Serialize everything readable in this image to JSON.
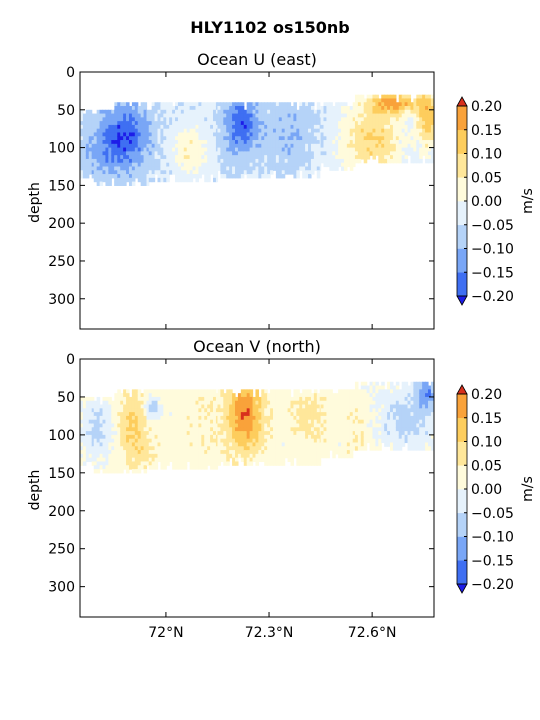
{
  "suptitle": "HLY1102 os150nb",
  "palette": {
    "levels": [
      -0.2,
      -0.15,
      -0.1,
      -0.05,
      0.0,
      0.05,
      0.1,
      0.15,
      0.2
    ],
    "colors": [
      "#1d1de8",
      "#3f6ff2",
      "#79a6f6",
      "#b5d3f8",
      "#e6f2fc",
      "#fffbdc",
      "#ffe79a",
      "#fdcd5d",
      "#f9a23a",
      "#ee6c26",
      "#d8301d"
    ]
  },
  "chart_data": [
    {
      "type": "heatmap",
      "name": "u",
      "title": "Ocean U (east)",
      "ylabel": "depth",
      "ylim": [
        340,
        0
      ],
      "yticks": [
        0,
        50,
        100,
        150,
        200,
        250,
        300
      ],
      "xlim": [
        71.75,
        72.78
      ],
      "xticks": [
        72.0,
        72.3,
        72.6
      ],
      "xticklabels": [],
      "colorbar": {
        "label": "m/s",
        "ticks": [
          0.2,
          0.15,
          0.1,
          0.05,
          0.0,
          -0.05,
          -0.1,
          -0.15,
          -0.2
        ],
        "ticklabels": [
          "0.20",
          "0.15",
          "0.10",
          "0.05",
          "0.00",
          "−0.05",
          "−0.10",
          "−0.15",
          "−0.20"
        ]
      },
      "depth_coverage": [
        {
          "x0": 71.75,
          "x1": 71.79,
          "d0": 50,
          "d1": 140
        },
        {
          "x0": 71.79,
          "x1": 71.85,
          "d0": 50,
          "d1": 150
        },
        {
          "x0": 71.85,
          "x1": 71.95,
          "d0": 40,
          "d1": 150
        },
        {
          "x0": 71.95,
          "x1": 72.15,
          "d0": 40,
          "d1": 145
        },
        {
          "x0": 72.15,
          "x1": 72.45,
          "d0": 40,
          "d1": 140
        },
        {
          "x0": 72.45,
          "x1": 72.55,
          "d0": 40,
          "d1": 130
        },
        {
          "x0": 72.55,
          "x1": 72.78,
          "d0": 30,
          "d1": 120
        }
      ],
      "features": [
        {
          "x": 71.88,
          "depth": 85,
          "rx": 0.07,
          "ry": 45,
          "value": -0.19
        },
        {
          "x": 72.22,
          "depth": 70,
          "rx": 0.05,
          "ry": 40,
          "value": -0.18
        },
        {
          "x": 71.8,
          "depth": 110,
          "rx": 0.06,
          "ry": 35,
          "value": -0.09
        },
        {
          "x": 72.07,
          "depth": 105,
          "rx": 0.05,
          "ry": 35,
          "value": 0.04
        },
        {
          "x": 72.36,
          "depth": 80,
          "rx": 0.07,
          "ry": 50,
          "value": -0.09
        },
        {
          "x": 72.6,
          "depth": 90,
          "rx": 0.09,
          "ry": 55,
          "value": 0.1
        },
        {
          "x": 72.67,
          "depth": 40,
          "rx": 0.07,
          "ry": 15,
          "value": 0.14
        },
        {
          "x": 72.76,
          "depth": 60,
          "rx": 0.03,
          "ry": 40,
          "value": 0.12
        }
      ],
      "background_value": -0.045
    },
    {
      "type": "heatmap",
      "name": "v",
      "title": "Ocean V (north)",
      "ylabel": "depth",
      "ylim": [
        340,
        0
      ],
      "yticks": [
        0,
        50,
        100,
        150,
        200,
        250,
        300
      ],
      "xlim": [
        71.75,
        72.78
      ],
      "xticks": [
        72.0,
        72.3,
        72.6
      ],
      "xticklabels": [
        "72°N",
        "72.3°N",
        "72.6°N"
      ],
      "colorbar": {
        "label": "m/s",
        "ticks": [
          0.2,
          0.15,
          0.1,
          0.05,
          0.0,
          -0.05,
          -0.1,
          -0.15,
          -0.2
        ],
        "ticklabels": [
          "0.20",
          "0.15",
          "0.10",
          "0.05",
          "0.00",
          "−0.05",
          "−0.10",
          "−0.15",
          "−0.20"
        ]
      },
      "depth_coverage": [
        {
          "x0": 71.75,
          "x1": 71.79,
          "d0": 50,
          "d1": 140
        },
        {
          "x0": 71.79,
          "x1": 71.85,
          "d0": 50,
          "d1": 150
        },
        {
          "x0": 71.85,
          "x1": 71.95,
          "d0": 40,
          "d1": 150
        },
        {
          "x0": 71.95,
          "x1": 72.15,
          "d0": 40,
          "d1": 145
        },
        {
          "x0": 72.15,
          "x1": 72.45,
          "d0": 40,
          "d1": 140
        },
        {
          "x0": 72.45,
          "x1": 72.55,
          "d0": 40,
          "d1": 130
        },
        {
          "x0": 72.55,
          "x1": 72.78,
          "d0": 30,
          "d1": 120
        }
      ],
      "features": [
        {
          "x": 72.23,
          "depth": 75,
          "rx": 0.05,
          "ry": 45,
          "value": 0.19
        },
        {
          "x": 71.9,
          "depth": 80,
          "rx": 0.04,
          "ry": 35,
          "value": 0.11
        },
        {
          "x": 71.92,
          "depth": 120,
          "rx": 0.05,
          "ry": 25,
          "value": 0.07
        },
        {
          "x": 71.96,
          "depth": 65,
          "rx": 0.02,
          "ry": 15,
          "value": -0.09
        },
        {
          "x": 72.42,
          "depth": 75,
          "rx": 0.05,
          "ry": 35,
          "value": 0.07
        },
        {
          "x": 72.12,
          "depth": 90,
          "rx": 0.07,
          "ry": 50,
          "value": 0.04
        },
        {
          "x": 71.8,
          "depth": 90,
          "rx": 0.05,
          "ry": 40,
          "value": -0.06
        },
        {
          "x": 72.7,
          "depth": 80,
          "rx": 0.08,
          "ry": 45,
          "value": -0.07
        },
        {
          "x": 72.76,
          "depth": 45,
          "rx": 0.03,
          "ry": 20,
          "value": -0.12
        },
        {
          "x": 72.56,
          "depth": 100,
          "rx": 0.03,
          "ry": 40,
          "value": 0.05
        }
      ],
      "background_value": 0.02
    }
  ]
}
